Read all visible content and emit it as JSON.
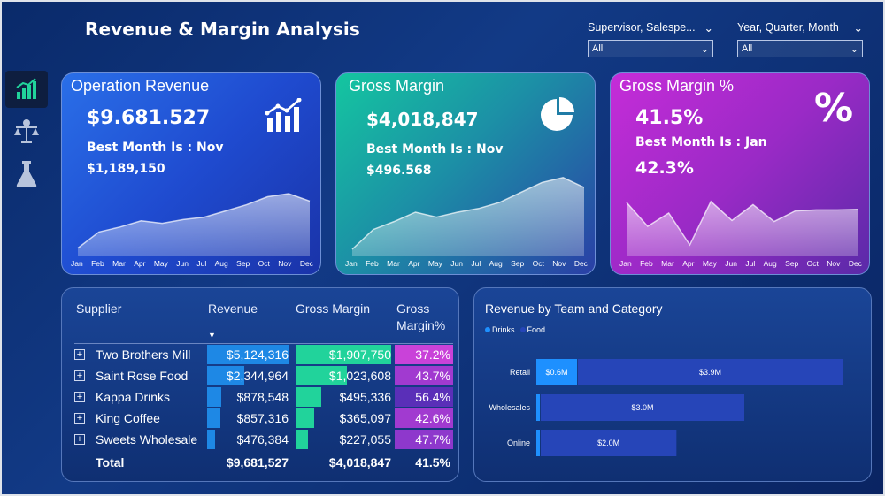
{
  "title": "Revenue & Margin Analysis",
  "filters": [
    {
      "label": "Supervisor, Salespe...",
      "value": "All"
    },
    {
      "label": "Year, Quarter, Month",
      "value": "All"
    }
  ],
  "sidebar": {
    "items": [
      {
        "icon": "bar-chart-icon",
        "active": true
      },
      {
        "icon": "scales-icon",
        "active": false
      },
      {
        "icon": "flask-icon",
        "active": false
      }
    ]
  },
  "kpis": [
    {
      "title": "Operation Revenue",
      "value": "$9.681.527",
      "best_label": "Best Month Is : Nov",
      "best_value": "$1,189,150",
      "icon": "line-chart-icon"
    },
    {
      "title": "Gross Margin",
      "value": "$4,018,847",
      "best_label": "Best Month Is : Nov",
      "best_value": "$496.568",
      "icon": "pie-chart-icon"
    },
    {
      "title": "Gross Margin %",
      "value": "41.5%",
      "best_label": "Best Month Is : Jan",
      "best_value": "42.3%",
      "icon": "percent-icon"
    }
  ],
  "months": [
    "Jan",
    "Feb",
    "Mar",
    "Apr",
    "May",
    "Jun",
    "Jul",
    "Aug",
    "Sep",
    "Oct",
    "Nov",
    "Dec"
  ],
  "sparklines": [
    [
      0.12,
      0.38,
      0.46,
      0.56,
      0.52,
      0.58,
      0.62,
      0.72,
      0.82,
      0.95,
      1.0,
      0.88
    ],
    [
      0.1,
      0.42,
      0.55,
      0.7,
      0.62,
      0.7,
      0.76,
      0.86,
      1.02,
      1.18,
      1.26,
      1.1
    ],
    [
      1.0,
      0.55,
      0.8,
      0.2,
      1.02,
      0.66,
      0.96,
      0.64,
      0.84,
      0.86,
      0.86,
      0.87
    ]
  ],
  "supplier_table": {
    "headers": {
      "supplier": "Supplier",
      "revenue": "Revenue",
      "margin": "Gross Margin",
      "margin_pct_1": "Gross",
      "margin_pct_2": "Margin%"
    },
    "rows": [
      {
        "supplier": "Two Brothers Mill",
        "revenue": "$5,124,316",
        "margin": "$1,907,750",
        "pct": "37.2%",
        "rev_val": 5124316,
        "margin_val": 1907750
      },
      {
        "supplier": "Saint Rose Food",
        "revenue": "$2,344,964",
        "margin": "$1,023,608",
        "pct": "43.7%",
        "rev_val": 2344964,
        "margin_val": 1023608
      },
      {
        "supplier": "Kappa Drinks",
        "revenue": "$878,548",
        "margin": "$495,336",
        "pct": "56.4%",
        "rev_val": 878548,
        "margin_val": 495336
      },
      {
        "supplier": "King Coffee",
        "revenue": "$857,316",
        "margin": "$365,097",
        "pct": "42.6%",
        "rev_val": 857316,
        "margin_val": 365097
      },
      {
        "supplier": "Sweets Wholesale",
        "revenue": "$476,384",
        "margin": "$227,055",
        "pct": "47.7%",
        "rev_val": 476384,
        "margin_val": 227055
      }
    ],
    "total": {
      "label": "Total",
      "revenue": "$9,681,527",
      "margin": "$4,018,847",
      "pct": "41.5%"
    }
  },
  "chart_data": {
    "type": "bar",
    "title": "Revenue by Team and Category",
    "categories": [
      "Retail",
      "Wholesales",
      "Online"
    ],
    "series": [
      {
        "name": "Drinks",
        "values": [
          0.6,
          0.05,
          0.02
        ]
      },
      {
        "name": "Food",
        "values": [
          3.9,
          3.0,
          2.0
        ]
      }
    ],
    "labels": [
      [
        "$0.6M",
        "$3.9M"
      ],
      [
        "",
        "$3.0M"
      ],
      [
        "",
        "$2.0M"
      ]
    ],
    "orientation": "horizontal-stacked",
    "legend": "top-left"
  },
  "colors": {
    "drinks": "#1e90ff",
    "food": "#2645b8",
    "revenue_bar": "#1e88e5",
    "margin_bar": "#21d39b"
  }
}
